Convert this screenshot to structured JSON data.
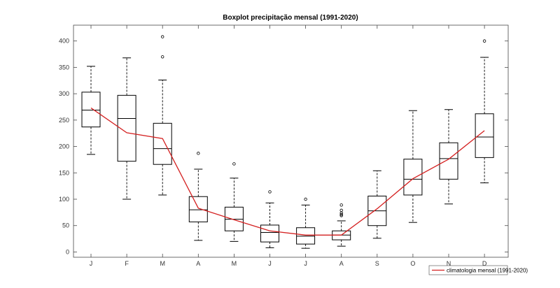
{
  "chart_data": {
    "type": "boxplot",
    "title": "Boxplot precipitação mensal (1991-2020)",
    "xlabel": "",
    "ylabel": "",
    "ylim": [
      -10,
      430
    ],
    "yticks": [
      0,
      50,
      100,
      150,
      200,
      250,
      300,
      350,
      400
    ],
    "categories": [
      "J",
      "F",
      "M",
      "A",
      "M",
      "J",
      "J",
      "A",
      "S",
      "O",
      "N",
      "D"
    ],
    "boxes": [
      {
        "whisker_low": 185,
        "q1": 237,
        "median": 269,
        "q3": 303,
        "whisker_high": 352,
        "outliers": []
      },
      {
        "whisker_low": 100,
        "q1": 172,
        "median": 253,
        "q3": 297,
        "whisker_high": 368,
        "outliers": []
      },
      {
        "whisker_low": 108,
        "q1": 166,
        "median": 196,
        "q3": 244,
        "whisker_high": 326,
        "outliers": [
          370,
          408
        ]
      },
      {
        "whisker_low": 22,
        "q1": 57,
        "median": 80,
        "q3": 105,
        "whisker_high": 157,
        "outliers": [
          187
        ]
      },
      {
        "whisker_low": 20,
        "q1": 40,
        "median": 62,
        "q3": 85,
        "whisker_high": 140,
        "outliers": [
          167
        ]
      },
      {
        "whisker_low": 8,
        "q1": 19,
        "median": 37,
        "q3": 51,
        "whisker_high": 93,
        "outliers": [
          114
        ]
      },
      {
        "whisker_low": 7,
        "q1": 15,
        "median": 30,
        "q3": 46,
        "whisker_high": 89,
        "outliers": [
          100
        ]
      },
      {
        "whisker_low": 11,
        "q1": 23,
        "median": 32,
        "q3": 40,
        "whisker_high": 59,
        "outliers": [
          69,
          71,
          74,
          79,
          89
        ]
      },
      {
        "whisker_low": 26,
        "q1": 50,
        "median": 78,
        "q3": 106,
        "whisker_high": 154,
        "outliers": []
      },
      {
        "whisker_low": 56,
        "q1": 108,
        "median": 138,
        "q3": 176,
        "whisker_high": 268,
        "outliers": []
      },
      {
        "whisker_low": 91,
        "q1": 138,
        "median": 177,
        "q3": 207,
        "whisker_high": 270,
        "outliers": []
      },
      {
        "whisker_low": 131,
        "q1": 179,
        "median": 218,
        "q3": 262,
        "whisker_high": 369,
        "outliers": [
          400
        ]
      }
    ],
    "series": [
      {
        "name": "climatologia mensal (1991-2020)",
        "color": "#d42020",
        "values": [
          273,
          226,
          215,
          83,
          61,
          40,
          32,
          32,
          82,
          139,
          176,
          230
        ]
      }
    ],
    "legend": {
      "position": "bottom-right"
    },
    "grid": false
  }
}
